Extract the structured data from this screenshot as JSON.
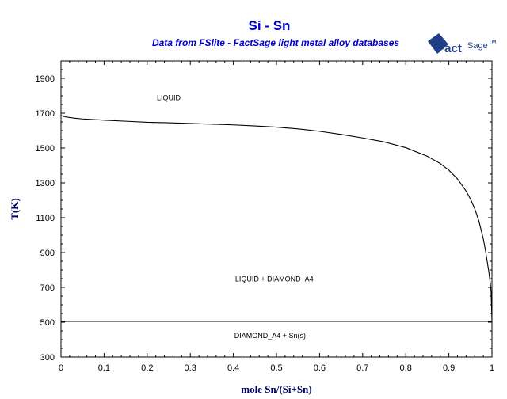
{
  "chart_data": {
    "type": "line",
    "title": "Si - Sn",
    "subtitle": "Data from FSlite - FactSage light metal alloy databases",
    "xlabel": "mole Sn/(Si+Sn)",
    "ylabel": "T(K)",
    "xlim": [
      0,
      1
    ],
    "ylim": [
      300,
      2000
    ],
    "x_ticks": [
      "0",
      "0.1",
      "0.2",
      "0.3",
      "0.4",
      "0.5",
      "0.6",
      "0.7",
      "0.8",
      "0.9",
      "1"
    ],
    "y_ticks": [
      "300",
      "500",
      "700",
      "900",
      "1100",
      "1300",
      "1500",
      "1700",
      "1900"
    ],
    "grid": false,
    "series": [
      {
        "x": [
          0,
          0.01,
          0.03,
          0.05,
          0.1,
          0.15,
          0.2,
          0.25,
          0.3,
          0.35,
          0.4,
          0.45,
          0.5,
          0.55,
          0.6,
          0.65,
          0.7,
          0.75,
          0.8,
          0.85,
          0.88,
          0.9,
          0.92,
          0.94,
          0.95,
          0.96,
          0.97,
          0.98,
          0.985,
          0.99,
          0.993,
          0.996,
          0.998,
          1.0
        ],
        "y": [
          1687,
          1679,
          1672,
          1667,
          1660,
          1654,
          1648,
          1645,
          1641,
          1637,
          1633,
          1627,
          1620,
          1610,
          1596,
          1578,
          1558,
          1535,
          1502,
          1453,
          1411,
          1373,
          1323,
          1253,
          1208,
          1152,
          1078,
          978,
          912,
          832,
          786,
          726,
          676,
          505
        ],
        "color": "#000000"
      },
      {
        "x": [
          0,
          1
        ],
        "y": [
          505,
          505
        ],
        "color": "#000000"
      }
    ],
    "annotations": [
      {
        "text": "LIQUID",
        "x": 0.25,
        "y": 1775
      },
      {
        "text": "LIQUID + DIAMOND_A4",
        "x": 0.495,
        "y": 735
      },
      {
        "text": "DIAMOND_A4 + Sn(s)",
        "x": 0.485,
        "y": 410
      }
    ]
  },
  "logo": {
    "text_main": "Fact",
    "text_secondary": "Sage",
    "mark": "™"
  }
}
